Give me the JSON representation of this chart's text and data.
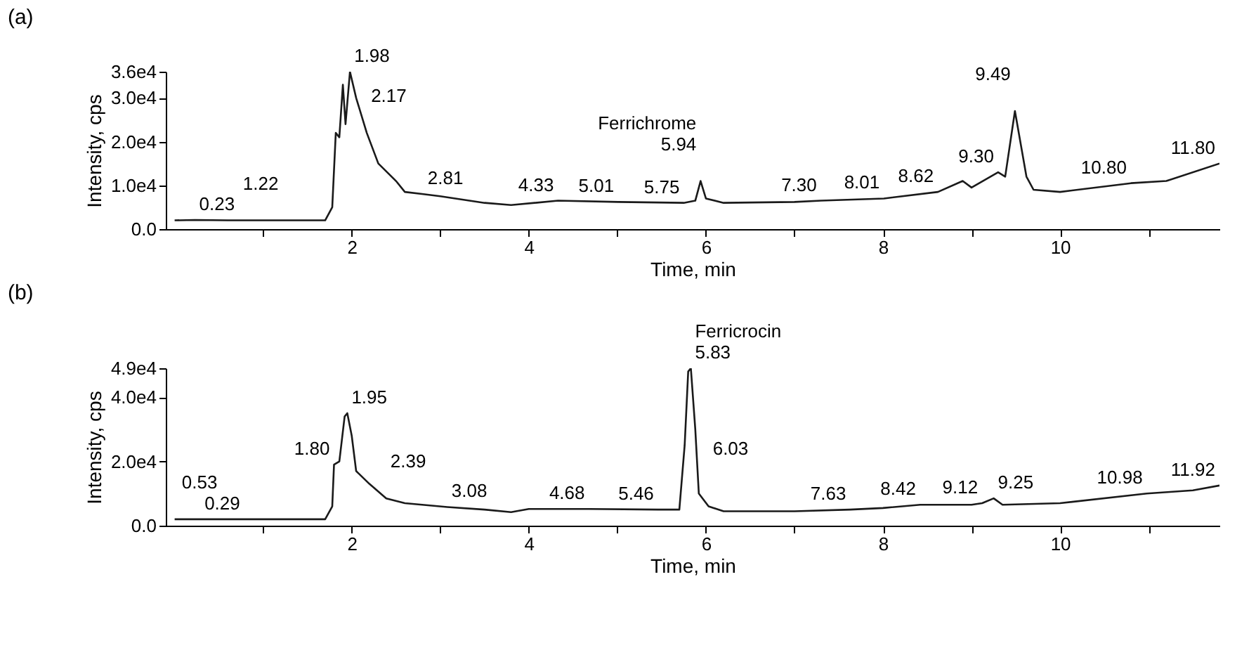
{
  "chart_data": [
    {
      "type": "line",
      "title": "(a)",
      "xlabel": "Time, min",
      "ylabel": "Intensity, cps",
      "xlim": [
        -0.1,
        11.8
      ],
      "xticks": [
        {
          "value": 1,
          "label": null
        },
        2,
        {
          "value": 3,
          "label": null
        },
        4,
        {
          "value": 5,
          "label": null
        },
        6,
        {
          "value": 7,
          "label": null
        },
        8,
        {
          "value": 9,
          "label": null
        },
        10,
        {
          "value": 11,
          "label": null
        }
      ],
      "ylim": [
        0,
        36000
      ],
      "yticks": [
        {
          "value": 0,
          "label": "0.0"
        },
        {
          "value": 10000,
          "label": "1.0e4"
        },
        {
          "value": 20000,
          "label": "2.0e4"
        },
        {
          "value": 30000,
          "label": "3.0e4"
        },
        {
          "value": 36000,
          "label": "3.6e4"
        }
      ],
      "series": [
        {
          "color": "#1a1a1a",
          "x": [
            0,
            0.23,
            0.6,
            1.0,
            1.22,
            1.5,
            1.7,
            1.78,
            1.82,
            1.86,
            1.9,
            1.93,
            1.98,
            2.05,
            2.17,
            2.3,
            2.5,
            2.6,
            2.81,
            3.0,
            3.5,
            3.8,
            4.33,
            5.01,
            5.75,
            5.88,
            5.94,
            6.0,
            6.2,
            7.0,
            7.3,
            8.01,
            8.62,
            8.9,
            9.0,
            9.3,
            9.38,
            9.49,
            9.62,
            9.7,
            10.0,
            10.8,
            11.2,
            11.8
          ],
          "values": [
            2000,
            2100,
            2000,
            2000,
            2000,
            2000,
            2000,
            5000,
            22000,
            21000,
            33000,
            24000,
            36000,
            30000,
            22000,
            15000,
            11000,
            8500,
            8000,
            7500,
            6000,
            5500,
            6500,
            6200,
            6000,
            6500,
            11000,
            7000,
            6000,
            6200,
            6500,
            7000,
            8500,
            11000,
            9500,
            13000,
            12000,
            27000,
            12000,
            9000,
            8500,
            10500,
            11000,
            15000
          ]
        }
      ],
      "annotations": [
        {
          "text": "0.23",
          "x": 0.23,
          "y": 2100
        },
        {
          "text": "1.22",
          "x": 1.22,
          "y": 2000
        },
        {
          "text": "1.98",
          "x": 1.98,
          "y": 36000
        },
        {
          "text": "2.17",
          "x": 2.17,
          "y": 22000
        },
        {
          "text": "2.81",
          "x": 2.81,
          "y": 8000
        },
        {
          "text": "4.33",
          "x": 4.33,
          "y": 6500
        },
        {
          "text": "5.01",
          "x": 5.01,
          "y": 6200
        },
        {
          "text": "5.75",
          "x": 5.75,
          "y": 6000
        },
        {
          "text": "5.94",
          "x": 5.94,
          "y": 11000
        },
        {
          "text": "Ferrichrome",
          "x": 5.94,
          "y": 11000
        },
        {
          "text": "7.30",
          "x": 7.3,
          "y": 6500
        },
        {
          "text": "8.01",
          "x": 8.01,
          "y": 7000
        },
        {
          "text": "8.62",
          "x": 8.62,
          "y": 8500
        },
        {
          "text": "9.30",
          "x": 9.3,
          "y": 13000
        },
        {
          "text": "9.49",
          "x": 9.49,
          "y": 27000
        },
        {
          "text": "10.80",
          "x": 10.8,
          "y": 10500
        },
        {
          "text": "11.80",
          "x": 11.8,
          "y": 15000
        }
      ]
    },
    {
      "type": "line",
      "title": "(b)",
      "xlabel": "Time, min",
      "ylabel": "Intensity, cps",
      "xlim": [
        -0.1,
        11.8
      ],
      "xticks": [
        {
          "value": 1,
          "label": null
        },
        2,
        {
          "value": 3,
          "label": null
        },
        4,
        {
          "value": 5,
          "label": null
        },
        6,
        {
          "value": 7,
          "label": null
        },
        8,
        {
          "value": 9,
          "label": null
        },
        10,
        {
          "value": 11,
          "label": null
        }
      ],
      "ylim": [
        0,
        49000
      ],
      "yticks": [
        {
          "value": 0,
          "label": "0.0"
        },
        {
          "value": 20000,
          "label": "2.0e4"
        },
        {
          "value": 40000,
          "label": "4.0e4"
        },
        {
          "value": 49000,
          "label": "4.9e4"
        }
      ],
      "series": [
        {
          "color": "#1a1a1a",
          "x": [
            0,
            0.29,
            0.53,
            1.0,
            1.5,
            1.7,
            1.78,
            1.8,
            1.86,
            1.92,
            1.95,
            2.0,
            2.05,
            2.2,
            2.39,
            2.6,
            3.08,
            3.5,
            3.8,
            4.0,
            4.68,
            5.46,
            5.7,
            5.76,
            5.8,
            5.83,
            5.88,
            5.92,
            6.03,
            6.2,
            7.0,
            7.63,
            8.0,
            8.42,
            9.0,
            9.12,
            9.25,
            9.35,
            10.0,
            10.98,
            11.5,
            11.8
          ],
          "values": [
            2000,
            2000,
            2000,
            2000,
            2000,
            2000,
            6000,
            19000,
            20000,
            34000,
            35000,
            28000,
            17000,
            13000,
            8500,
            7000,
            5800,
            5000,
            4200,
            5200,
            5200,
            5000,
            5000,
            25000,
            48000,
            49000,
            30000,
            10000,
            6000,
            4500,
            4500,
            5000,
            5500,
            6500,
            6500,
            7000,
            8500,
            6500,
            7000,
            10000,
            11000,
            12500
          ]
        }
      ],
      "annotations": [
        {
          "text": "0.29",
          "x": 0.29,
          "y": 2000
        },
        {
          "text": "0.53",
          "x": 0.53,
          "y": 2000
        },
        {
          "text": "1.80",
          "x": 1.8,
          "y": 19000
        },
        {
          "text": "1.95",
          "x": 1.95,
          "y": 35000
        },
        {
          "text": "2.39",
          "x": 2.39,
          "y": 8500
        },
        {
          "text": "3.08",
          "x": 3.08,
          "y": 5800
        },
        {
          "text": "4.68",
          "x": 4.68,
          "y": 5200
        },
        {
          "text": "5.46",
          "x": 5.46,
          "y": 5000
        },
        {
          "text": "5.83",
          "x": 5.83,
          "y": 49000
        },
        {
          "text": "Ferricrocin",
          "x": 5.83,
          "y": 49000
        },
        {
          "text": "6.03",
          "x": 6.03,
          "y": 6000
        },
        {
          "text": "7.63",
          "x": 7.63,
          "y": 5000
        },
        {
          "text": "8.42",
          "x": 8.42,
          "y": 6500
        },
        {
          "text": "9.12",
          "x": 9.12,
          "y": 7000
        },
        {
          "text": "9.25",
          "x": 9.25,
          "y": 8500
        },
        {
          "text": "10.98",
          "x": 10.98,
          "y": 10000
        },
        {
          "text": "11.92",
          "x": 11.8,
          "y": 12500
        }
      ]
    }
  ]
}
